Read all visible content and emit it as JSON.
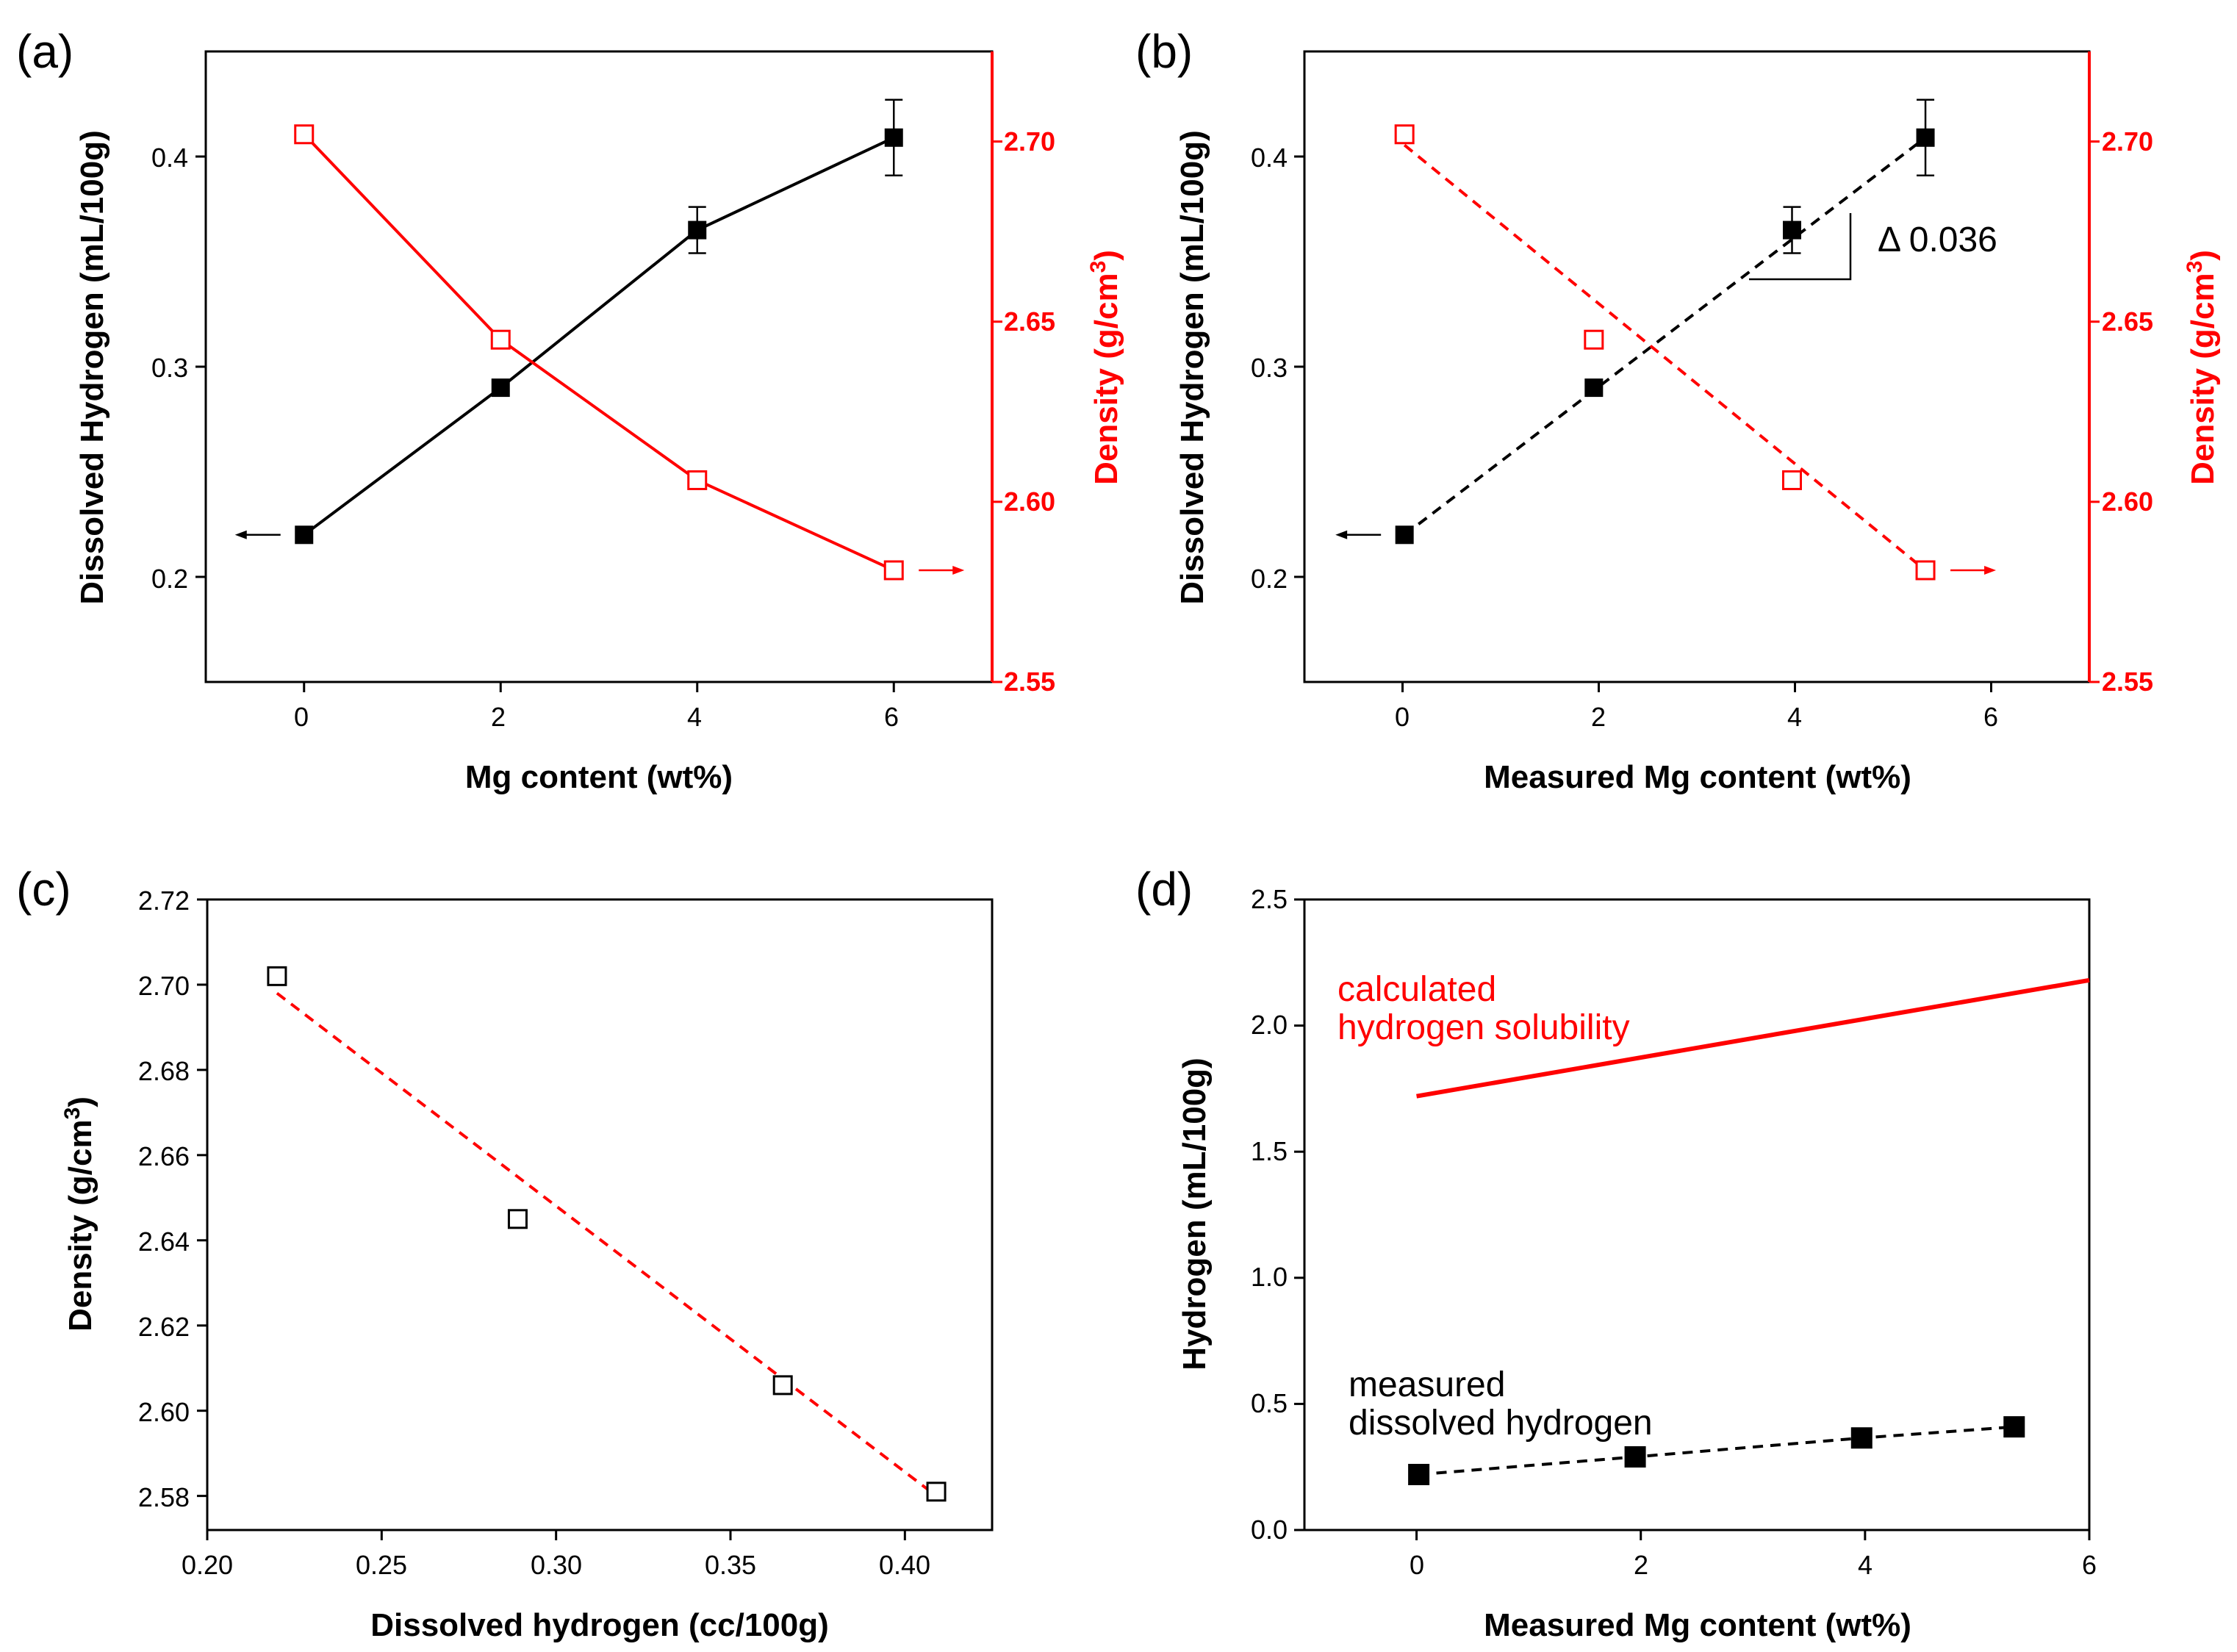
{
  "figure": {
    "panels": [
      "(a)",
      "(b)",
      "(c)",
      "(d)"
    ]
  },
  "chart_data": [
    {
      "panel_label": "(a)",
      "type": "line",
      "xlabel": "Mg content (wt%)",
      "ylabel": "Dissolved Hydrogen (mL/100g)",
      "y2label": "Density (g/cm3)",
      "xlim": [
        -1,
        7
      ],
      "ylim": [
        0.15,
        0.45
      ],
      "y2lim": [
        2.55,
        2.725
      ],
      "xticks": [
        "0",
        "2",
        "4",
        "6"
      ],
      "yticks": [
        "0.2",
        "0.3",
        "0.4"
      ],
      "y2ticks": [
        "2.55",
        "2.60",
        "2.65",
        "2.70"
      ],
      "series": [
        {
          "axis": "left",
          "color": "#000000",
          "line": "solid",
          "marker": "filled-square",
          "x": [
            0,
            2,
            4,
            6
          ],
          "y": [
            0.22,
            0.29,
            0.365,
            0.409
          ],
          "err": [
            0,
            0,
            0.011,
            0.018
          ]
        },
        {
          "axis": "right",
          "color": "#ff0000",
          "line": "solid",
          "marker": "open-square",
          "x": [
            0,
            2,
            4,
            6
          ],
          "y": [
            2.702,
            2.645,
            2.606,
            2.581
          ],
          "err": [
            0,
            0,
            0,
            0
          ]
        }
      ]
    },
    {
      "panel_label": "(b)",
      "type": "scatter",
      "xlabel": "Measured Mg content (wt%)",
      "ylabel": "Dissolved Hydrogen (mL/100g)",
      "y2label": "Density (g/cm3)",
      "xlim": [
        -1,
        7
      ],
      "ylim": [
        0.15,
        0.45
      ],
      "y2lim": [
        2.55,
        2.725
      ],
      "xticks": [
        "0",
        "2",
        "4",
        "6"
      ],
      "yticks": [
        "0.2",
        "0.3",
        "0.4"
      ],
      "y2ticks": [
        "2.55",
        "2.60",
        "2.65",
        "2.70"
      ],
      "annotation": "Δ 0.036",
      "series": [
        {
          "axis": "left",
          "color": "#000000",
          "line": "dashed",
          "marker": "filled-square",
          "x": [
            0.02,
            1.95,
            3.97,
            5.33
          ],
          "y": [
            0.22,
            0.29,
            0.365,
            0.409
          ],
          "err": [
            0,
            0,
            0.011,
            0.018
          ],
          "fit": [
            [
              0.02,
              0.22
            ],
            [
              5.33,
              0.409
            ]
          ]
        },
        {
          "axis": "right",
          "color": "#ff0000",
          "line": "dashed",
          "marker": "open-square",
          "x": [
            0.02,
            1.95,
            3.97,
            5.33
          ],
          "y": [
            2.702,
            2.645,
            2.606,
            2.581
          ],
          "err": [
            0,
            0,
            0,
            0
          ],
          "fit": [
            [
              0.02,
              2.699
            ],
            [
              5.33,
              2.581
            ]
          ]
        }
      ]
    },
    {
      "panel_label": "(c)",
      "type": "scatter",
      "xlabel": "Dissolved hydrogen (cc/100g)",
      "ylabel": "Density (g/cm3)",
      "xlim": [
        0.2,
        0.425
      ],
      "ylim": [
        2.572,
        2.72
      ],
      "xticks": [
        "0.20",
        "0.25",
        "0.30",
        "0.35",
        "0.40"
      ],
      "yticks": [
        "2.58",
        "2.60",
        "2.62",
        "2.64",
        "2.66",
        "2.68",
        "2.70",
        "2.72"
      ],
      "series": [
        {
          "axis": "left",
          "color": "#000000",
          "line": "none",
          "marker": "open-square",
          "x": [
            0.22,
            0.289,
            0.365,
            0.409
          ],
          "y": [
            2.702,
            2.645,
            2.606,
            2.581
          ],
          "err": [
            0,
            0,
            0,
            0
          ],
          "fit": [
            [
              0.22,
              2.698
            ],
            [
              0.409,
              2.58
            ]
          ],
          "fit_color": "#ff0000"
        }
      ]
    },
    {
      "panel_label": "(d)",
      "type": "line",
      "xlabel": "Measured Mg content (wt%)",
      "ylabel": "Hydrogen (mL/100g)",
      "xlim": [
        -1,
        6
      ],
      "ylim": [
        0,
        2.5
      ],
      "xticks": [
        "0",
        "2",
        "4",
        "6"
      ],
      "yticks": [
        "0.0",
        "0.5",
        "1.0",
        "1.5",
        "2.0",
        "2.5"
      ],
      "annotations": [
        {
          "lines": [
            "calculated",
            "hydrogen solubility"
          ],
          "color": "#ff0000"
        },
        {
          "lines": [
            "measured",
            "dissolved hydrogen"
          ],
          "color": "#000000"
        }
      ],
      "series": [
        {
          "axis": "left",
          "color": "#ff0000",
          "line": "solid",
          "marker": "none",
          "x": [
            0,
            6
          ],
          "y": [
            1.72,
            2.18
          ],
          "err": []
        },
        {
          "axis": "left",
          "color": "#000000",
          "line": "dashed",
          "marker": "filled-square",
          "x": [
            0.02,
            1.95,
            3.97,
            5.33
          ],
          "y": [
            0.22,
            0.29,
            0.365,
            0.409
          ],
          "err": [
            0,
            0,
            0,
            0
          ]
        }
      ]
    }
  ]
}
